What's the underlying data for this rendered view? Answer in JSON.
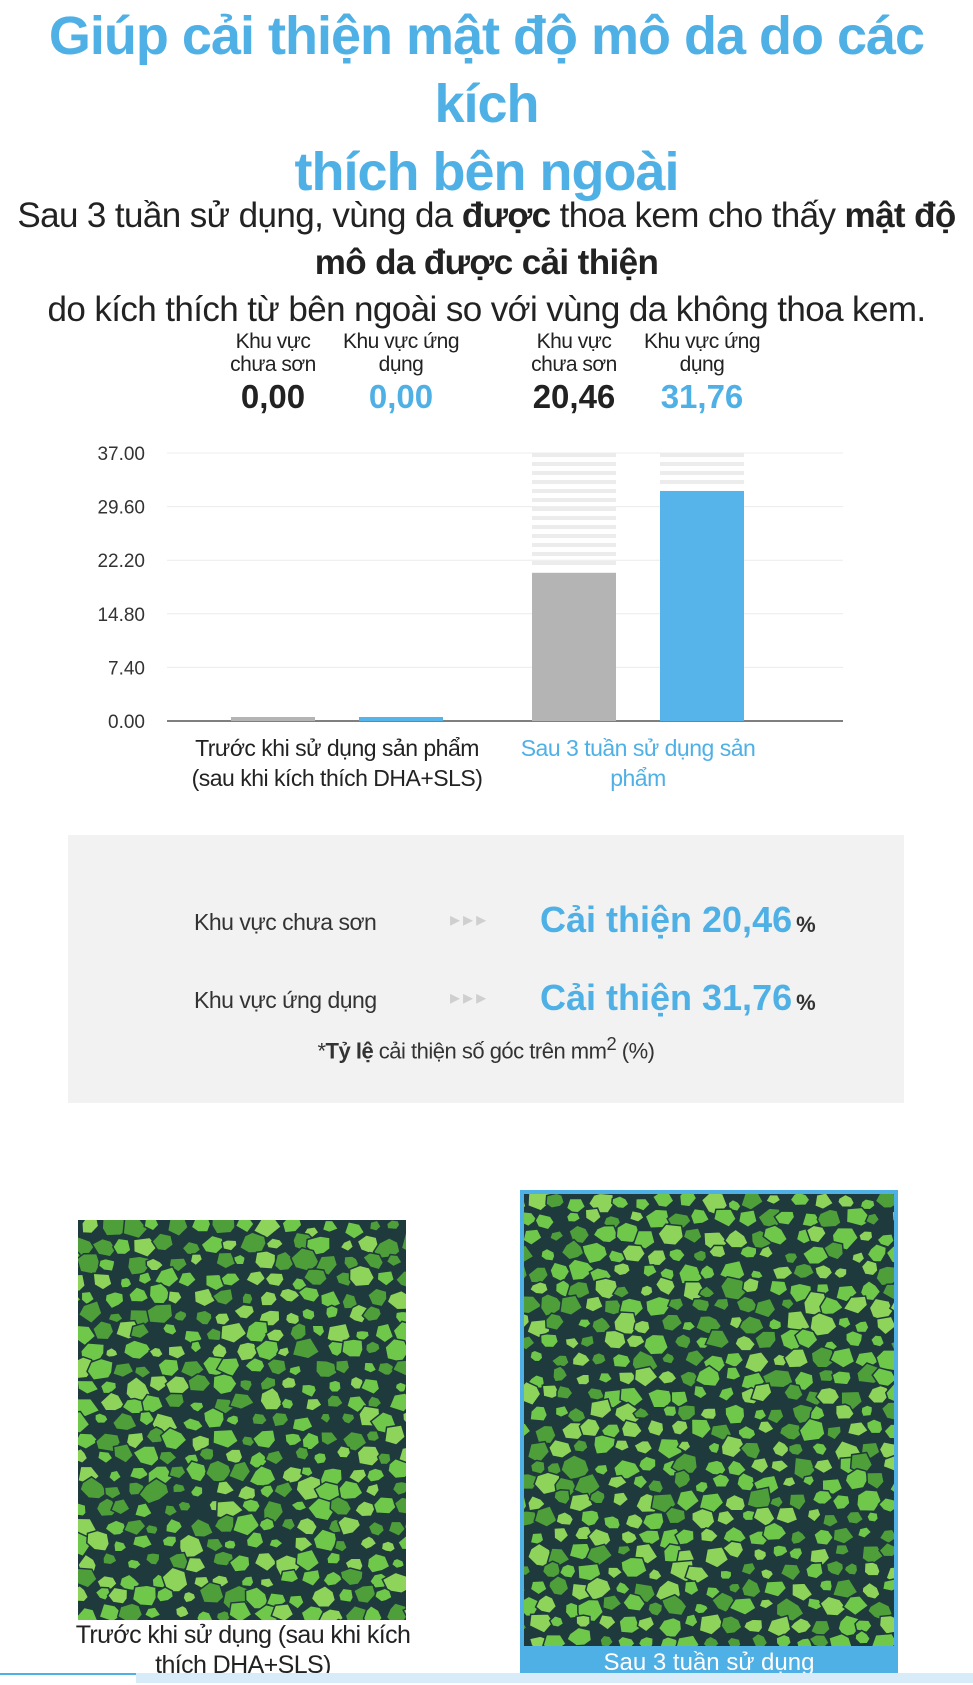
{
  "headline": {
    "line1": "Giúp cải thiện mật độ mô da do các kích",
    "line2": "thích bên ngoài"
  },
  "subtitle": {
    "part1": "Sau 3 tuần sử dụng, vùng da ",
    "bold1": "được",
    "part2": " thoa kem cho thấy ",
    "bold2": "mật độ mô da được cải thiện",
    "part3": "do kích thích từ bên ngoài so với vùng da không thoa kem."
  },
  "chart_data": {
    "type": "bar",
    "title": "",
    "xlabel": "",
    "ylabel": "",
    "ylim": [
      0,
      37
    ],
    "yticks": [
      "0.00",
      "7.40",
      "14.80",
      "22.20",
      "29.60",
      "37.00"
    ],
    "categories": [
      "Trước khi sử dụng sản phẩm (sau khi kích thích DHA+SLS)",
      "Sau 3 tuần sử dụng sản phẩm"
    ],
    "category_lines": [
      [
        "Trước khi sử dụng sản phẩm",
        "(sau khi kích thích DHA+SLS)"
      ],
      [
        "Sau 3 tuần sử dụng sản",
        "phẩm"
      ]
    ],
    "series": [
      {
        "name": "Khu vực chưa sơn",
        "name_lines": [
          "Khu vực",
          "chưa sơn"
        ],
        "values": [
          0.0,
          20.46
        ],
        "labels": [
          "0,00",
          "20,46"
        ],
        "color": "#b4b4b4"
      },
      {
        "name": "Khu vực ứng dụng",
        "name_lines": [
          "Khu vực ứng",
          "dụng"
        ],
        "values": [
          0.0,
          31.76
        ],
        "labels": [
          "0,00",
          "31,76"
        ],
        "color": "#56b4ea"
      }
    ],
    "grid": true,
    "legend": "none"
  },
  "summary": {
    "rows": [
      {
        "area": "Khu vực chưa sơn",
        "arrows": "▸▸▸",
        "improvement": "Cải thiện 20,46",
        "unit": "%"
      },
      {
        "area": "Khu vực ứng dụng",
        "arrows": "▸▸▸",
        "improvement": "Cải thiện 31,76",
        "unit": "%"
      }
    ],
    "footnote_lead": "*",
    "footnote_bold": "Tỷ lệ",
    "footnote_rest": " cải thiện số góc trên mm",
    "footnote_sup": "2",
    "footnote_tail": " (%)"
  },
  "photos": {
    "before_caption_line1": "Trước khi sử dụng (sau khi kích",
    "before_caption_line2": "thích DHA+SLS)",
    "after_caption": "Sau 3 tuần sử dụng"
  },
  "colors": {
    "accent": "#4fb0e6",
    "bar_grey": "#b4b4b4",
    "bar_blue": "#56b4ea",
    "cell_green": "#6fc84a",
    "cell_dark": "#1f3a3c"
  }
}
